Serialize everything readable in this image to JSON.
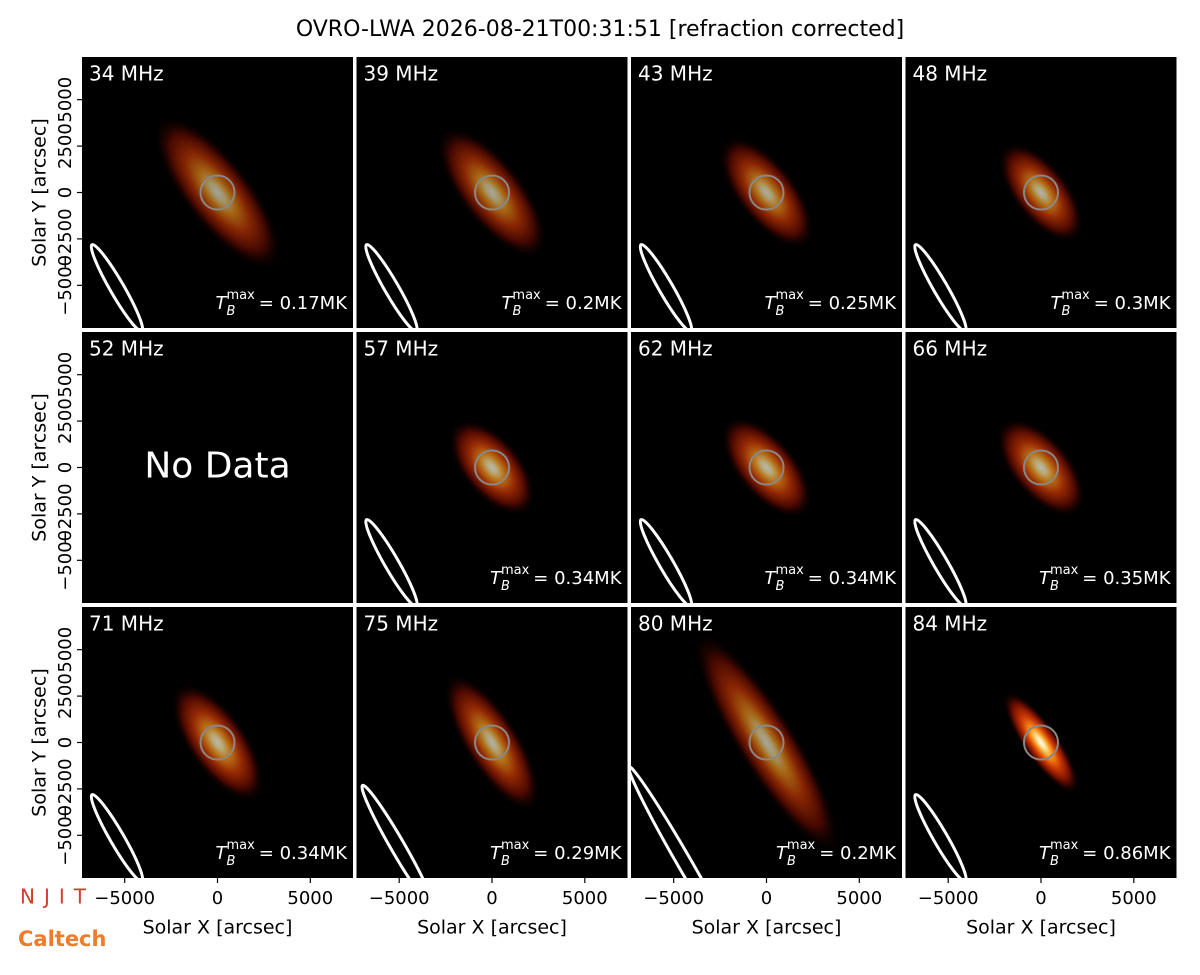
{
  "chart_data": {
    "type": "image_grid",
    "title": "OVRO-LWA 2026-08-21T00:31:51 [refraction corrected]",
    "xlabel": "Solar X [arcsec]",
    "ylabel": "Solar Y [arcsec]",
    "xlim": [
      -7300,
      7300
    ],
    "ylim": [
      -7300,
      7300
    ],
    "xticks": [
      {
        "value": -5000,
        "label": "−5000"
      },
      0,
      5000
    ],
    "yticks": [
      {
        "value": -5000,
        "label": "−5000"
      },
      {
        "value": -2500,
        "label": "−2500"
      },
      0,
      2500,
      5000
    ],
    "categories": [
      "34 MHz",
      "39 MHz",
      "43 MHz",
      "48 MHz",
      "52 MHz",
      "57 MHz",
      "62 MHz",
      "66 MHz",
      "71 MHz",
      "75 MHz",
      "80 MHz",
      "84 MHz"
    ],
    "values": [
      0.17,
      0.2,
      0.25,
      0.3,
      null,
      0.34,
      0.34,
      0.35,
      0.34,
      0.29,
      0.2,
      0.86
    ],
    "value_labels": [
      "= 0.17MK",
      "= 0.2MK",
      "= 0.25MK",
      "= 0.3MK",
      null,
      "= 0.34MK",
      "= 0.34MK",
      "= 0.35MK",
      "= 0.34MK",
      "= 0.29MK",
      "= 0.2MK",
      "= 0.86MK"
    ],
    "tb_symbol": "T",
    "tb_subscript": "B",
    "tb_superscript": "max",
    "no_data_text": "No Data",
    "logos": [
      "NJIT",
      "Caltech"
    ]
  }
}
